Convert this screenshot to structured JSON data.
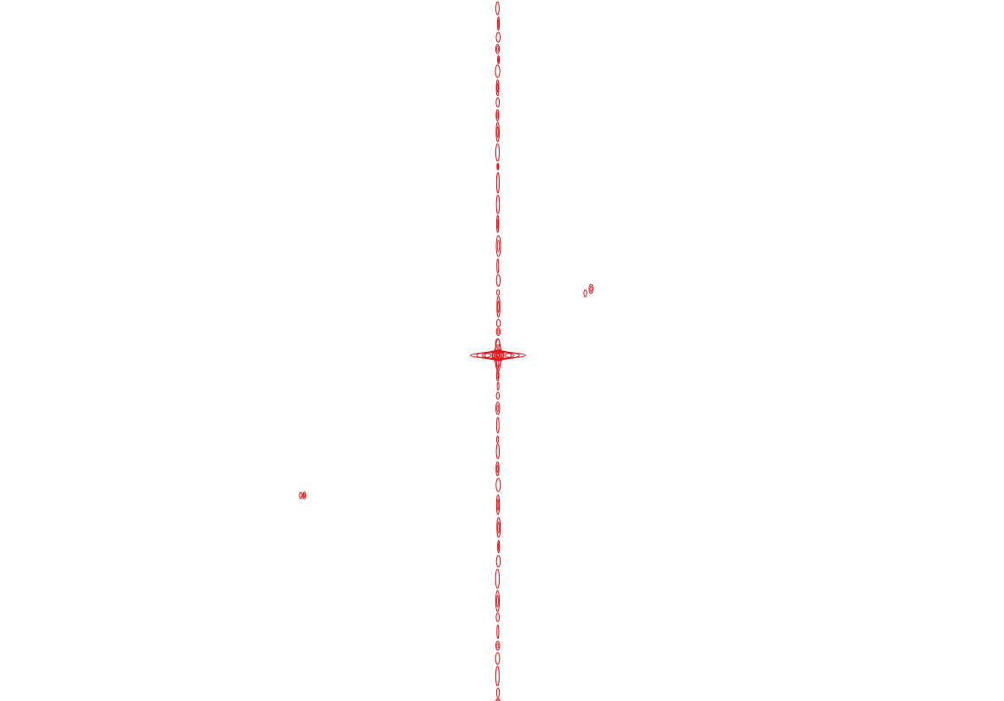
{
  "plot": {
    "contour_color": "#e0141a",
    "background_color": "#ffffff",
    "gridlines": false,
    "axes_visible": false,
    "text_labels": []
  },
  "features": [
    {
      "name": "vertical-contour-ridge",
      "kind": "ridge"
    },
    {
      "name": "central-cross-peak",
      "kind": "peak"
    },
    {
      "name": "upper-right-peak",
      "kind": "peak"
    },
    {
      "name": "lower-left-peak",
      "kind": "peak"
    }
  ]
}
